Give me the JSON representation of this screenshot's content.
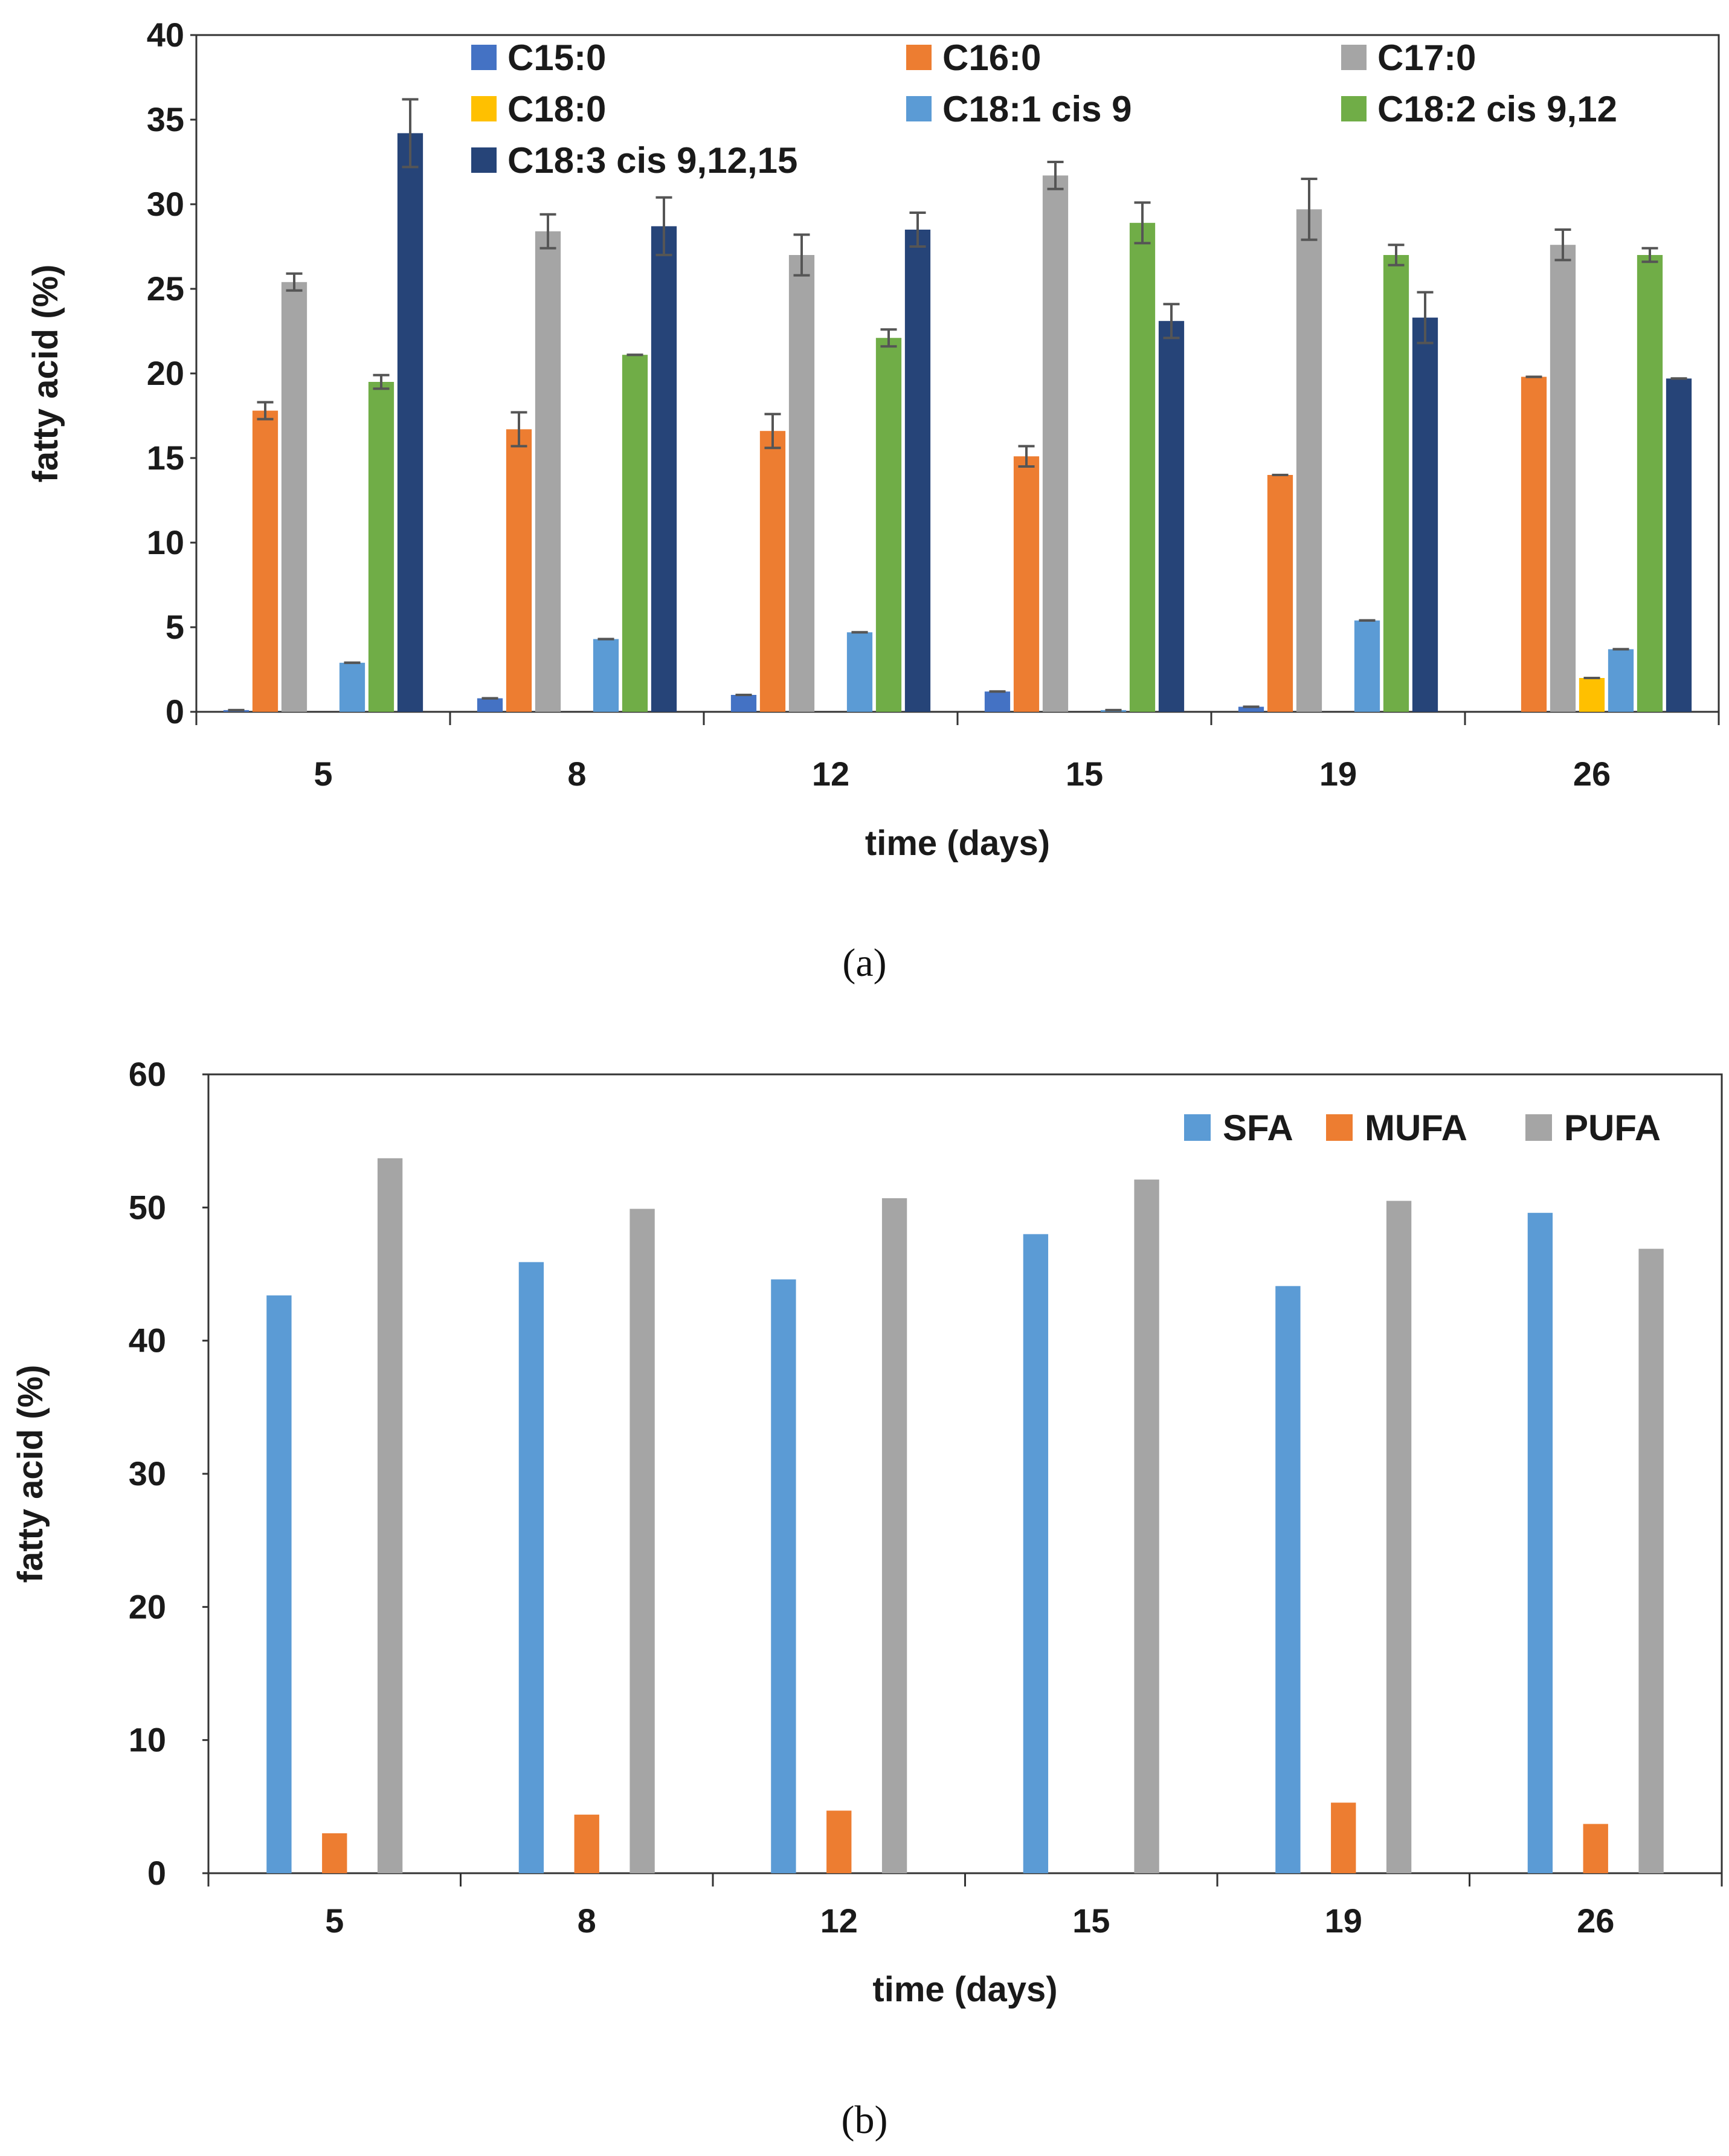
{
  "chart_data": [
    {
      "type": "bar",
      "panel_label": "(a)",
      "xlabel": "time (days)",
      "ylabel": "fatty acid (%)",
      "ylim": [
        0,
        40
      ],
      "yticks": [
        0,
        5,
        10,
        15,
        20,
        25,
        30,
        35,
        40
      ],
      "categories": [
        "5",
        "8",
        "12",
        "15",
        "19",
        "26"
      ],
      "legend_position": "top (inside plot)",
      "series": [
        {
          "name": "C15:0",
          "color": "#4472C4",
          "values": [
            0.1,
            0.8,
            1.0,
            1.2,
            0.3,
            0
          ],
          "errors": [
            0,
            0,
            0,
            0,
            0,
            0
          ]
        },
        {
          "name": "C16:0",
          "color": "#ED7D31",
          "values": [
            17.8,
            16.7,
            16.6,
            15.1,
            14.0,
            19.8
          ],
          "errors": [
            0.5,
            1.0,
            1.0,
            0.6,
            0,
            0
          ]
        },
        {
          "name": "C17:0",
          "color": "#A5A5A5",
          "values": [
            25.4,
            28.4,
            27.0,
            31.7,
            29.7,
            27.6
          ],
          "errors": [
            0.5,
            1.0,
            1.2,
            0.8,
            1.8,
            0.9
          ]
        },
        {
          "name": "C18:0",
          "color": "#FFC000",
          "values": [
            0,
            0,
            0,
            0,
            0,
            2.0
          ],
          "errors": [
            0,
            0,
            0,
            0,
            0,
            0
          ]
        },
        {
          "name": "C18:1 cis 9",
          "color": "#5B9BD5",
          "values": [
            2.9,
            4.3,
            4.7,
            0.1,
            5.4,
            3.7
          ],
          "errors": [
            0,
            0,
            0,
            0,
            0,
            0
          ]
        },
        {
          "name": "C18:2 cis 9,12",
          "color": "#70AD47",
          "values": [
            19.5,
            21.1,
            22.1,
            28.9,
            27.0,
            27.0
          ],
          "errors": [
            0.4,
            0,
            0.5,
            1.2,
            0.6,
            0.4
          ]
        },
        {
          "name": "C18:3 cis 9,12,15",
          "color": "#264478",
          "values": [
            34.2,
            28.7,
            28.5,
            23.1,
            23.3,
            19.7
          ],
          "errors": [
            2.0,
            1.7,
            1.0,
            1.0,
            1.5,
            0
          ]
        }
      ]
    },
    {
      "type": "bar",
      "panel_label": "(b)",
      "xlabel": "time (days)",
      "ylabel": "fatty acid (%)",
      "ylim": [
        0,
        60
      ],
      "yticks": [
        0,
        10,
        20,
        30,
        40,
        50,
        60
      ],
      "categories": [
        "5",
        "8",
        "12",
        "15",
        "19",
        "26"
      ],
      "legend_position": "top-right",
      "series": [
        {
          "name": "SFA",
          "color": "#5B9BD5",
          "values": [
            43.4,
            45.9,
            44.6,
            48.0,
            44.1,
            49.6
          ]
        },
        {
          "name": "MUFA",
          "color": "#ED7D31",
          "values": [
            3.0,
            4.4,
            4.7,
            0,
            5.3,
            3.7
          ]
        },
        {
          "name": "PUFA",
          "color": "#A5A5A5",
          "values": [
            53.7,
            49.9,
            50.7,
            52.1,
            50.5,
            46.9
          ]
        }
      ]
    }
  ]
}
